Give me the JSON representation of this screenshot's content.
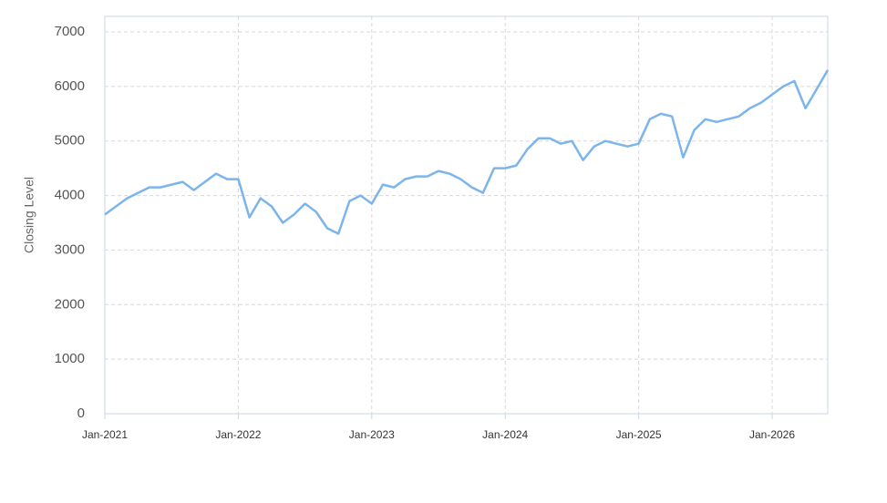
{
  "chart_data": {
    "type": "line",
    "y_label": "Closing Level",
    "color": "#7cb5ec",
    "grid": true,
    "x": [
      "2021-01",
      "2021-02",
      "2021-03",
      "2021-04",
      "2021-05",
      "2021-06",
      "2021-07",
      "2021-08",
      "2021-09",
      "2021-10",
      "2021-11",
      "2021-12",
      "2022-01",
      "2022-02",
      "2022-03",
      "2022-04",
      "2022-05",
      "2022-06",
      "2022-07",
      "2022-08",
      "2022-09",
      "2022-10",
      "2022-11",
      "2022-12",
      "2023-01",
      "2023-02",
      "2023-03",
      "2023-04",
      "2023-05",
      "2023-06",
      "2023-07",
      "2023-08",
      "2023-09",
      "2023-10",
      "2023-11",
      "2023-12",
      "2024-01",
      "2024-02",
      "2024-03",
      "2024-04",
      "2024-05",
      "2024-06",
      "2024-07",
      "2024-08",
      "2024-09",
      "2024-10",
      "2024-11",
      "2024-12",
      "2025-01",
      "2025-02",
      "2025-03",
      "2025-04",
      "2025-05",
      "2025-06",
      "2025-07",
      "2025-08",
      "2025-09",
      "2025-10",
      "2025-11",
      "2025-12",
      "2026-01",
      "2026-02",
      "2026-03",
      "2026-04",
      "2026-05",
      "2026-06"
    ],
    "values": [
      3650,
      3800,
      3950,
      4050,
      4150,
      4150,
      4200,
      4250,
      4100,
      4250,
      4400,
      4300,
      4300,
      3600,
      3950,
      3800,
      3500,
      3650,
      3850,
      3700,
      3400,
      3300,
      3900,
      4000,
      3850,
      4200,
      4150,
      4300,
      4350,
      4350,
      4450,
      4400,
      4300,
      4150,
      4050,
      4500,
      4500,
      4550,
      4850,
      5050,
      5050,
      4950,
      5000,
      4650,
      4900,
      5000,
      4950,
      4900,
      4950,
      5400,
      5500,
      5450,
      4700,
      5200,
      5400,
      5350,
      5400,
      5450,
      5600,
      5700,
      5850,
      6000,
      6100,
      5600,
      5950,
      6300
    ],
    "xlim": [
      "2021-01",
      "2026-06"
    ],
    "xticks": [
      {
        "value": "2021-01",
        "label": "Jan-2021"
      },
      {
        "value": "2022-01",
        "label": "Jan-2022"
      },
      {
        "value": "2023-01",
        "label": "Jan-2023"
      },
      {
        "value": "2024-01",
        "label": "Jan-2024"
      },
      {
        "value": "2025-01",
        "label": "Jan-2025"
      },
      {
        "value": "2026-01",
        "label": "Jan-2026"
      }
    ],
    "ylim": [
      0,
      7000
    ],
    "yticks": [
      0,
      1000,
      2000,
      3000,
      4000,
      5000,
      6000,
      7000
    ]
  }
}
